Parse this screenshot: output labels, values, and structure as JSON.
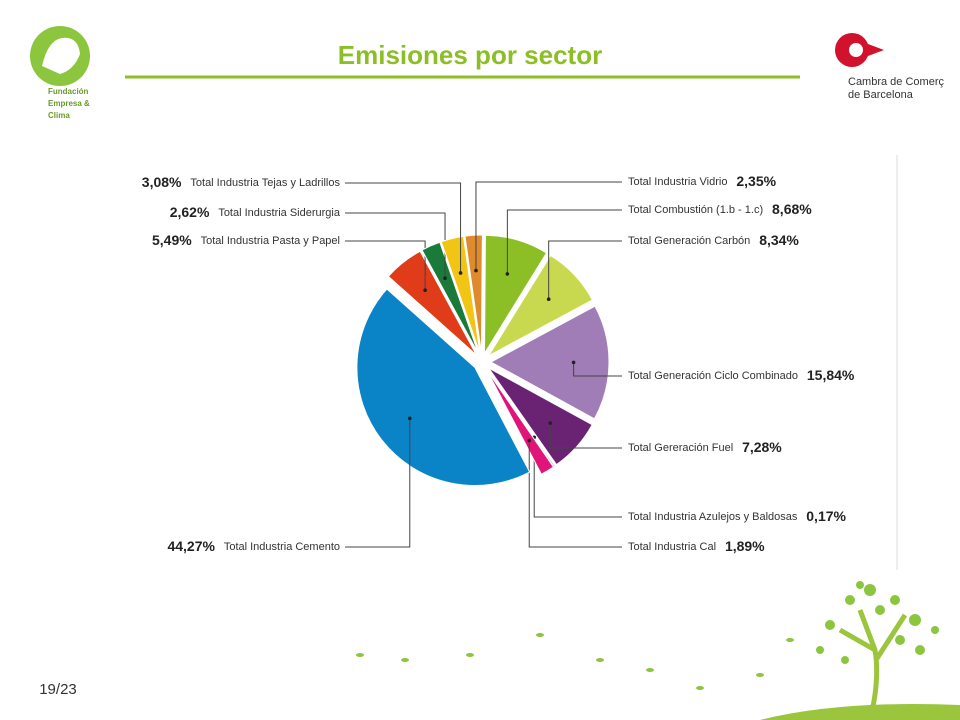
{
  "header": {
    "title": "Emisiones por sector",
    "logo_left": [
      "Fundación",
      "Empresa &",
      "Clima"
    ],
    "logo_right": [
      "Cambra de Comerç",
      "de Barcelona"
    ]
  },
  "chart_data": {
    "type": "pie",
    "categories": [
      "Total Industria Vidrio",
      "Total Combustión (1.b - 1.c)",
      "Total Generación Carbón",
      "Total Generación Ciclo Combinado",
      "Total Gereración Fuel",
      "Total Industria Azulejos y Baldosas",
      "Total Industria Cal",
      "Total Industria Cemento",
      "Total Industria Pasta y Papel",
      "Total Industria Siderurgia",
      "Total Industria Tejas y Ladrillos"
    ],
    "values": [
      2.35,
      8.68,
      8.34,
      15.84,
      7.28,
      0.17,
      1.89,
      44.27,
      5.49,
      2.62,
      3.08
    ],
    "value_labels": [
      "2,35%",
      "8,68%",
      "8,34%",
      "15,84%",
      "7,28%",
      "0,17%",
      "1,89%",
      "44,27%",
      "5,49%",
      "2,62%",
      "3,08%"
    ],
    "colors": [
      "#df8a2c",
      "#8cbf26",
      "#c9d94f",
      "#a07db6",
      "#6a2373",
      "#1f4e8c",
      "#e0157a",
      "#0a84c6",
      "#e03c1a",
      "#1a7a3a",
      "#f2c414"
    ]
  },
  "footer": {
    "page": "19/23"
  }
}
